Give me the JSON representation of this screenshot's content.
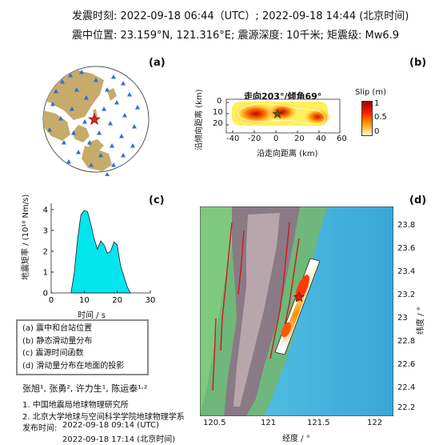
{
  "header": {
    "line1": "发震时刻: 2022-09-18 06:44（UTC）;   2022-09-18  14:44 (北京时间)",
    "line2": "震中位置: 23.159°N,  121.316°E;   震源深度: 10千米; 矩震级: Mw6.9"
  },
  "panels": {
    "a": "(a)",
    "b": "(b)",
    "c": "(c)",
    "d": "(d)"
  },
  "panel_b": {
    "title": "走向203°/倾角69°",
    "xlabel": "沿走向距离 (km)",
    "ylabel": "沿倾向距离 (km)",
    "colorbar_label": "Slip (m)",
    "colorbar_ticks": [
      "1",
      "0.5",
      "0"
    ],
    "x_ticks": [
      "-40",
      "-20",
      "0",
      "20",
      "40",
      "60"
    ],
    "y_ticks": [
      "0",
      "10",
      "20"
    ],
    "colors": {
      "low": "#ffffcc",
      "mid": "#ff8c00",
      "high": "#b00000"
    }
  },
  "panel_c": {
    "xlabel": "时间 / s",
    "ylabel": "地震矩率 / (10¹⁸ Nm/s)",
    "x_ticks": [
      "0",
      "10",
      "20",
      "30"
    ],
    "y_ticks": [
      "0",
      "1",
      "2",
      "3",
      "4"
    ],
    "fill_color": "#00e5ee"
  },
  "chart_data": {
    "type": "area",
    "title": "",
    "xlabel": "时间 / s",
    "ylabel": "地震矩率 / (10¹⁸ Nm/s)",
    "x": [
      6,
      7,
      8,
      9,
      10,
      11,
      12,
      13,
      14,
      15,
      16,
      17,
      18,
      19,
      20,
      21,
      22,
      23,
      24
    ],
    "values": [
      0,
      1.0,
      2.6,
      3.75,
      3.95,
      3.9,
      3.3,
      2.6,
      2.1,
      2.5,
      2.3,
      1.9,
      2.0,
      2.45,
      2.3,
      1.3,
      0.8,
      0.3,
      0
    ],
    "xlim": [
      0,
      30
    ],
    "ylim": [
      0,
      4.3
    ]
  },
  "panel_d": {
    "xlabel": "经度 / °",
    "ylabel": "纬度 / °",
    "x_ticks": [
      "120.5",
      "121",
      "121.5",
      "122"
    ],
    "y_ticks": [
      "23.8",
      "23.6",
      "23.4",
      "23.2",
      "23",
      "22.8",
      "22.6",
      "22.4",
      "22.2"
    ]
  },
  "legend": {
    "items": [
      "(a) 震中和台站位置",
      "(b) 静态滑动量分布",
      "(c) 震源时间函数",
      "(d) 滑动量分布在地面的投影"
    ]
  },
  "credits": {
    "authors": "张旭¹, 张勇², 许力生¹, 陈运泰¹˒²",
    "affil1": "1. 中国地震局地球物理研究所",
    "affil2": "2. 北京大学地球与空间科学学院地球物理学系",
    "release_label": "发布时间:",
    "release_utc": "2022-09-18  09:14 (UTC)",
    "release_bj": "2022-09-18  17:14 (北京时间)"
  }
}
